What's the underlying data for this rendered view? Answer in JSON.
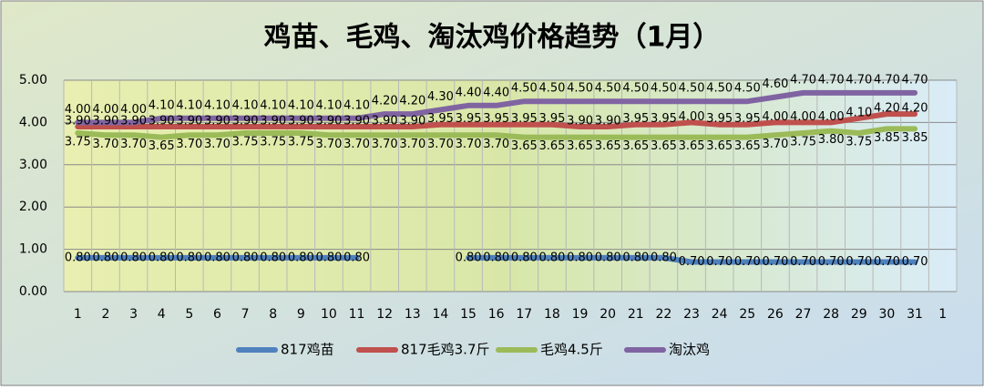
{
  "chart_data": {
    "type": "line",
    "title": "鸡苗、毛鸡、淘汰鸡价格趋势（1月）",
    "categories": [
      "1",
      "2",
      "3",
      "4",
      "5",
      "6",
      "7",
      "8",
      "9",
      "10",
      "11",
      "12",
      "13",
      "14",
      "15",
      "16",
      "17",
      "18",
      "19",
      "20",
      "21",
      "22",
      "23",
      "24",
      "25",
      "26",
      "27",
      "28",
      "29",
      "30",
      "31",
      "1"
    ],
    "ylim": [
      0,
      5
    ],
    "yticks": [
      {
        "value": 0,
        "label": "0.00"
      },
      {
        "value": 1,
        "label": "1.00"
      },
      {
        "value": 2,
        "label": "2.00"
      },
      {
        "value": 3,
        "label": "3.00"
      },
      {
        "value": 4,
        "label": "4.00"
      },
      {
        "value": 5,
        "label": "5.00"
      }
    ],
    "grid": true,
    "legend": "bottom",
    "series": [
      {
        "name": "817鸡苗",
        "color": "#4f81bd",
        "values": [
          0.8,
          0.8,
          0.8,
          0.8,
          0.8,
          0.8,
          0.8,
          0.8,
          0.8,
          0.8,
          0.8,
          null,
          null,
          null,
          0.8,
          0.8,
          0.8,
          0.8,
          0.8,
          0.8,
          0.8,
          0.8,
          0.7,
          0.7,
          0.7,
          0.7,
          0.7,
          0.7,
          0.7,
          0.7,
          0.7,
          null
        ],
        "value_labels": [
          "0.80",
          "0.80",
          "0.80",
          "0.80",
          "0.80",
          "0.80",
          "0.80",
          "0.80",
          "0.80",
          "0.80",
          "0.80",
          null,
          null,
          null,
          "0.80",
          "0.80",
          "0.80",
          "0.80",
          "0.80",
          "0.80",
          "0.80",
          "0.80",
          "0.70",
          "0.70",
          "0.70",
          "0.70",
          "0.70",
          "0.70",
          "0.70",
          "0.70",
          "0.70",
          null
        ]
      },
      {
        "name": "817毛鸡3.7斤",
        "color": "#c0504d",
        "values": [
          3.9,
          3.9,
          3.9,
          3.9,
          3.9,
          3.9,
          3.9,
          3.9,
          3.9,
          3.9,
          3.9,
          3.9,
          3.9,
          3.95,
          3.95,
          3.95,
          3.95,
          3.95,
          3.9,
          3.9,
          3.95,
          3.95,
          4.0,
          3.95,
          3.95,
          4.0,
          4.0,
          4.0,
          4.1,
          4.2,
          4.2,
          null
        ],
        "value_labels": [
          "3.90",
          "3.90",
          "3.90",
          "3.90",
          "3.90",
          "3.90",
          "3.90",
          "3.90",
          "3.90",
          "3.90",
          "3.90",
          "3.90",
          "3.90",
          "3.95",
          "3.95",
          "3.95",
          "3.95",
          "3.95",
          "3.90",
          "3.90",
          "3.95",
          "3.95",
          "4.00",
          "3.95",
          "3.95",
          "4.00",
          "4.00",
          "4.00",
          "4.10",
          "4.20",
          "4.20",
          null
        ]
      },
      {
        "name": "毛鸡4.5斤",
        "color": "#9bbb59",
        "values": [
          3.75,
          3.7,
          3.7,
          3.65,
          3.7,
          3.7,
          3.75,
          3.75,
          3.75,
          3.7,
          3.7,
          3.7,
          3.7,
          3.7,
          3.7,
          3.7,
          3.65,
          3.65,
          3.65,
          3.65,
          3.65,
          3.65,
          3.65,
          3.65,
          3.65,
          3.7,
          3.75,
          3.8,
          3.75,
          3.85,
          3.85,
          null
        ],
        "value_labels": [
          "3.75",
          "3.70",
          "3.70",
          "3.65",
          "3.70",
          "3.70",
          "3.75",
          "3.75",
          "3.75",
          "3.70",
          "3.70",
          "3.70",
          "3.70",
          "3.70",
          "3.70",
          "3.70",
          "3.65",
          "3.65",
          "3.65",
          "3.65",
          "3.65",
          "3.65",
          "3.65",
          "3.65",
          "3.65",
          "3.70",
          "3.75",
          "3.80",
          "3.75",
          "3.85",
          "3.85",
          null
        ]
      },
      {
        "name": "淘汰鸡",
        "color": "#8064a2",
        "values": [
          4.0,
          4.0,
          4.0,
          4.1,
          4.1,
          4.1,
          4.1,
          4.1,
          4.1,
          4.1,
          4.1,
          4.2,
          4.2,
          4.3,
          4.4,
          4.4,
          4.5,
          4.5,
          4.5,
          4.5,
          4.5,
          4.5,
          4.5,
          4.5,
          4.5,
          4.6,
          4.7,
          4.7,
          4.7,
          4.7,
          4.7,
          null
        ],
        "value_labels": [
          "4.00",
          "4.00",
          "4.00",
          "4.10",
          "4.10",
          "4.10",
          "4.10",
          "4.10",
          "4.10",
          "4.10",
          "4.10",
          "4.20",
          "4.20",
          "4.30",
          "4.40",
          "4.40",
          "4.50",
          "4.50",
          "4.50",
          "4.50",
          "4.50",
          "4.50",
          "4.50",
          "4.50",
          "4.50",
          "4.60",
          "4.70",
          "4.70",
          "4.70",
          "4.70",
          "4.70",
          null
        ]
      }
    ]
  }
}
